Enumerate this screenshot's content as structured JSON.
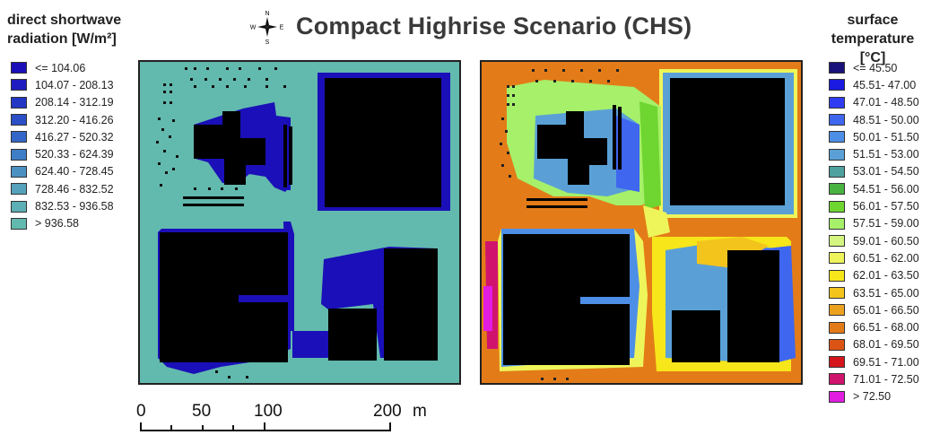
{
  "title": "Compact Highrise Scenario (CHS)",
  "compass": {
    "icon": "compass-rose-icon",
    "n": "N",
    "s": "S",
    "e": "E",
    "w": "W"
  },
  "left_legend": {
    "title_line1": "direct shortwave",
    "title_line2": "radiation [W/m²]",
    "items": [
      {
        "label": "<= 104.06",
        "color": "#1a0fb8"
      },
      {
        "label": "104.07 - 208.13",
        "color": "#1e1cc0"
      },
      {
        "label": "208.14 - 312.19",
        "color": "#2436c4"
      },
      {
        "label": "312.20 - 416.26",
        "color": "#2a4fc6"
      },
      {
        "label": "416.27 - 520.32",
        "color": "#3366c8"
      },
      {
        "label": "520.33 - 624.39",
        "color": "#3e7ec6"
      },
      {
        "label": "624.40 - 728.45",
        "color": "#4a91c2"
      },
      {
        "label": "728.46 - 832.52",
        "color": "#55a2bc"
      },
      {
        "label": "832.53 - 936.58",
        "color": "#5cafb4"
      },
      {
        "label": "> 936.58",
        "color": "#62b9ad"
      }
    ]
  },
  "right_legend": {
    "title_line1": "surface",
    "title_line2": "temperature [°C]",
    "items": [
      {
        "label": "<= 45.50",
        "color": "#18127a"
      },
      {
        "label": "45.51- 47.00",
        "color": "#1a1ae0"
      },
      {
        "label": "47.01 - 48.50",
        "color": "#2f3cf2"
      },
      {
        "label": "48.51 - 50.00",
        "color": "#3f66ee"
      },
      {
        "label": "50.01 - 51.50",
        "color": "#4d8ee6"
      },
      {
        "label": "51.51 - 53.00",
        "color": "#5aa0d6"
      },
      {
        "label": "53.01 - 54.50",
        "color": "#4ea19e"
      },
      {
        "label": "54.51 - 56.00",
        "color": "#48b341"
      },
      {
        "label": "56.01 - 57.50",
        "color": "#6fd531"
      },
      {
        "label": "57.51 - 59.00",
        "color": "#a6f06a"
      },
      {
        "label": "59.01 - 60.50",
        "color": "#d4f580"
      },
      {
        "label": "60.51 - 62.00",
        "color": "#eef55a"
      },
      {
        "label": "62.01 - 63.50",
        "color": "#f6e61a"
      },
      {
        "label": "63.51 - 65.00",
        "color": "#f2c41c"
      },
      {
        "label": "65.01 - 66.50",
        "color": "#eca21e"
      },
      {
        "label": "66.51 - 68.00",
        "color": "#e37c18"
      },
      {
        "label": "68.01 - 69.50",
        "color": "#dc5414"
      },
      {
        "label": "69.51 - 71.00",
        "color": "#d4161c"
      },
      {
        "label": "71.01 - 72.50",
        "color": "#d0146e"
      },
      {
        "label": "> 72.50",
        "color": "#e21ce0"
      }
    ]
  },
  "scalebar": {
    "ticks": [
      "0",
      "50",
      "100",
      "200"
    ],
    "unit": "m"
  },
  "colors": {
    "building": "#000000",
    "left_ground": "#62b9ad",
    "left_shadow": "#1a0fb8",
    "right_ground": "#e37c18",
    "frame": "#222222"
  }
}
